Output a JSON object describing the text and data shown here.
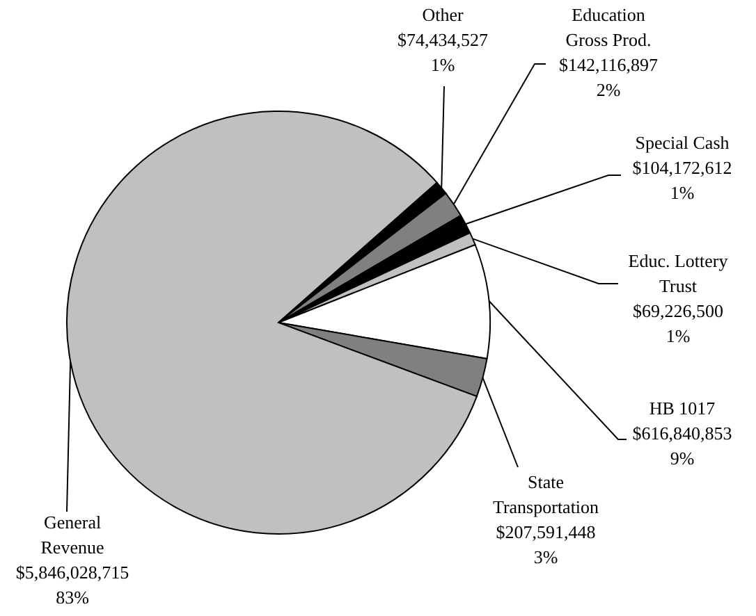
{
  "chart_data": {
    "type": "pie",
    "categories": [
      "Other",
      "Education Gross Prod.",
      "Special Cash",
      "Educ. Lottery Trust",
      "HB 1017",
      "State Transportation",
      "General Revenue"
    ],
    "values": [
      74434527,
      142116897,
      104172612,
      69226500,
      616840853,
      207591448,
      5846028715
    ],
    "colors": [
      "#000000",
      "#808080",
      "#000000",
      "#c0c0c0",
      "#ffffff",
      "#808080",
      "#c0c0c0"
    ],
    "value_labels": [
      "$74,434,527\n1%",
      "$142,116,897\n2%",
      "$104,172,612\n1%",
      "$69,226,500\n1%",
      "$616,840,853\n9%",
      "$207,591,448\n3%",
      "$5,846,028,715\n83%"
    ]
  }
}
